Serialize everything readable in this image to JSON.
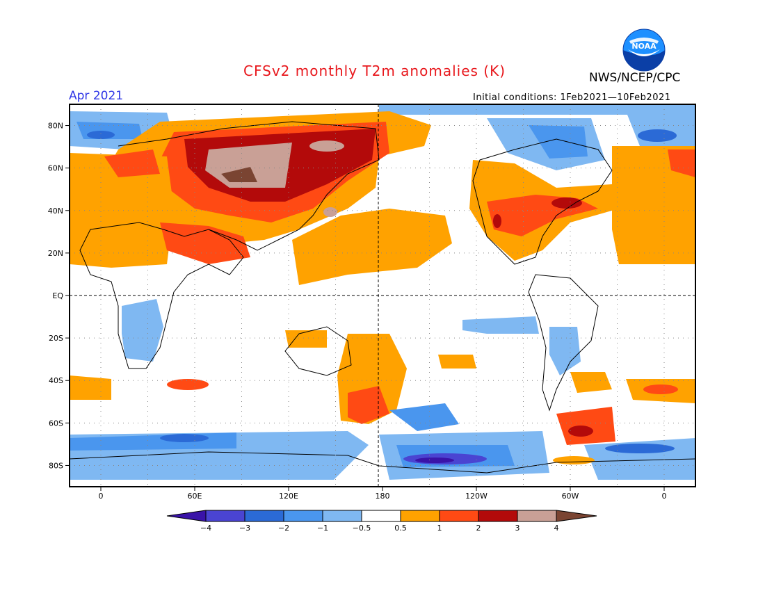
{
  "title": "CFSv2 monthly T2m anomalies (K)",
  "month": "Apr 2021",
  "agency": "NWS/NCEP/CPC",
  "logo_text": "NOAA",
  "initial_conditions": "Initial conditions: 1Feb2021—10Feb2021",
  "lat_labels": [
    "80N",
    "60N",
    "40N",
    "20N",
    "EQ",
    "20S",
    "40S",
    "60S",
    "80S"
  ],
  "lon_labels": [
    "0",
    "60E",
    "120E",
    "180",
    "120W",
    "60W",
    "0"
  ],
  "legend": {
    "labels": [
      "−4",
      "−3",
      "−2",
      "−1",
      "−0.5",
      "0.5",
      "1",
      "2",
      "3",
      "4"
    ],
    "colors": [
      "#3a13a8",
      "#4a44d2",
      "#2b6ad6",
      "#4a96ee",
      "#7fb8f2",
      "#ffffff",
      "#ffa200",
      "#ff4a14",
      "#b30a0a",
      "#c9a096",
      "#7a4432"
    ]
  }
}
